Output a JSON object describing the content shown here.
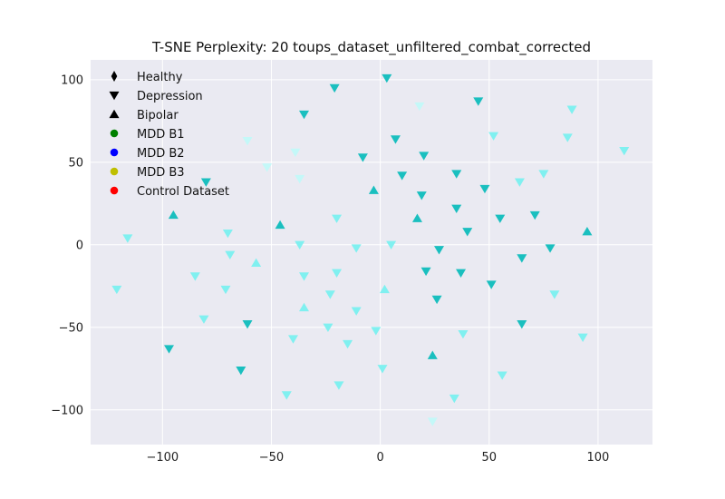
{
  "chart_data": {
    "type": "scatter",
    "title": "T-SNE Perplexity: 20 toups_dataset_unfiltered_combat_corrected",
    "xlabel": "",
    "ylabel": "",
    "xlim": [
      -133,
      125
    ],
    "ylim": [
      -121,
      112
    ],
    "xticks": [
      -100,
      -50,
      0,
      50,
      100
    ],
    "yticks": [
      -100,
      -50,
      0,
      50,
      100
    ],
    "grid": true,
    "background": "#EAEAF2",
    "legend_position": "top-left",
    "legend": [
      {
        "label": "Healthy",
        "marker": "thin_diamond",
        "color": "#000000"
      },
      {
        "label": "Depression",
        "marker": "triangle-down",
        "color": "#000000"
      },
      {
        "label": "Bipolar",
        "marker": "triangle-up",
        "color": "#000000"
      },
      {
        "label": "MDD B1",
        "marker": "circle",
        "color": "#008000"
      },
      {
        "label": "MDD B2",
        "marker": "circle",
        "color": "#0000FF"
      },
      {
        "label": "MDD B3",
        "marker": "circle",
        "color": "#BFBF00"
      },
      {
        "label": "Control Dataset",
        "marker": "circle",
        "color": "#FF0000"
      }
    ],
    "colors": {
      "dark": "#1ABFBF",
      "light": "#80F0F0",
      "lightest": "#C4F8F8"
    },
    "series": [
      {
        "marker": "triangle-down",
        "color": "dark",
        "points": [
          [
            -21,
            95
          ],
          [
            3,
            101
          ],
          [
            45,
            87
          ],
          [
            -35,
            79
          ],
          [
            7,
            64
          ],
          [
            -8,
            53
          ],
          [
            20,
            54
          ],
          [
            10,
            42
          ],
          [
            35,
            43
          ],
          [
            48,
            34
          ],
          [
            19,
            30
          ],
          [
            35,
            22
          ],
          [
            55,
            16
          ],
          [
            40,
            8
          ],
          [
            27,
            -3
          ],
          [
            78,
            -2
          ],
          [
            65,
            -8
          ],
          [
            21,
            -16
          ],
          [
            37,
            -17
          ],
          [
            51,
            -24
          ],
          [
            26,
            -33
          ],
          [
            65,
            -48
          ],
          [
            -61,
            -48
          ],
          [
            -97,
            -63
          ],
          [
            -64,
            -76
          ],
          [
            -80,
            38
          ],
          [
            71,
            18
          ]
        ]
      },
      {
        "marker": "triangle-up",
        "color": "dark",
        "points": [
          [
            -95,
            18
          ],
          [
            -3,
            33
          ],
          [
            17,
            16
          ],
          [
            95,
            8
          ],
          [
            24,
            -67
          ],
          [
            -46,
            12
          ]
        ]
      },
      {
        "marker": "triangle-down",
        "color": "light",
        "points": [
          [
            52,
            66
          ],
          [
            86,
            65
          ],
          [
            88,
            82
          ],
          [
            112,
            57
          ],
          [
            75,
            43
          ],
          [
            64,
            38
          ],
          [
            -20,
            16
          ],
          [
            -70,
            7
          ],
          [
            -116,
            4
          ],
          [
            -37,
            0
          ],
          [
            -11,
            -2
          ],
          [
            5,
            0
          ],
          [
            -69,
            -6
          ],
          [
            -85,
            -19
          ],
          [
            -35,
            -19
          ],
          [
            -20,
            -17
          ],
          [
            -71,
            -27
          ],
          [
            -121,
            -27
          ],
          [
            -23,
            -30
          ],
          [
            80,
            -30
          ],
          [
            -11,
            -40
          ],
          [
            -81,
            -45
          ],
          [
            -24,
            -50
          ],
          [
            -2,
            -52
          ],
          [
            38,
            -54
          ],
          [
            -40,
            -57
          ],
          [
            -15,
            -60
          ],
          [
            1,
            -75
          ],
          [
            56,
            -79
          ],
          [
            -19,
            -85
          ],
          [
            -43,
            -91
          ],
          [
            34,
            -93
          ],
          [
            93,
            -56
          ]
        ]
      },
      {
        "marker": "triangle-up",
        "color": "light",
        "points": [
          [
            -57,
            -11
          ],
          [
            2,
            -27
          ],
          [
            -35,
            -38
          ]
        ]
      },
      {
        "marker": "triangle-down",
        "color": "lightest",
        "points": [
          [
            18,
            84
          ],
          [
            -61,
            63
          ],
          [
            -52,
            47
          ],
          [
            -39,
            56
          ],
          [
            -37,
            40
          ],
          [
            24,
            -107
          ]
        ]
      }
    ]
  }
}
